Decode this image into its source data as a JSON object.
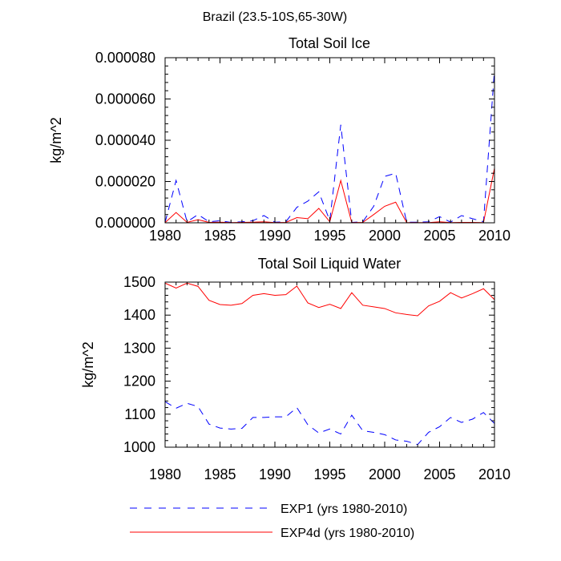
{
  "header": {
    "title": "Brazil (23.5-10S,65-30W)"
  },
  "colors": {
    "exp1": "#0000ff",
    "exp4d": "#ff0000",
    "axis": "#000000"
  },
  "chart_data": [
    {
      "type": "line",
      "title": "Total Soil Ice",
      "ylabel": "kg/m^2",
      "xlabel": "",
      "xlim": [
        1980,
        2010
      ],
      "ylim": [
        0,
        8e-05
      ],
      "x_ticks": [
        1980,
        1985,
        1990,
        1995,
        2000,
        2005,
        2010
      ],
      "x_tick_labels": [
        "1980",
        "1985",
        "1990",
        "1995",
        "2000",
        "2005",
        "2010"
      ],
      "y_ticks": [
        0,
        2e-05,
        4e-05,
        6e-05,
        8e-05
      ],
      "y_tick_labels": [
        "0.000000",
        "0.000020",
        "0.000040",
        "0.000060",
        "0.000080"
      ],
      "x": [
        1980,
        1981,
        1982,
        1983,
        1984,
        1985,
        1986,
        1987,
        1988,
        1989,
        1990,
        1991,
        1992,
        1993,
        1994,
        1995,
        1996,
        1997,
        1998,
        1999,
        2000,
        2001,
        2002,
        2003,
        2004,
        2005,
        2006,
        2007,
        2008,
        2009,
        2010
      ],
      "series": [
        {
          "name": "EXP1 (yrs 1980-2010)",
          "style": "dashed",
          "color": "#0000ff",
          "values": [
            2e-07,
            2.05e-05,
            5e-07,
            4e-06,
            5e-07,
            1e-06,
            2e-07,
            5e-07,
            1e-06,
            3.5e-06,
            3e-07,
            5e-07,
            7.5e-06,
            1.05e-05,
            1.5e-05,
            1e-06,
            4.75e-05,
            2e-07,
            5e-07,
            8e-06,
            2.25e-05,
            2.4e-05,
            3e-07,
            3e-07,
            5e-07,
            3e-06,
            3e-07,
            3.5e-06,
            2e-06,
            5e-07,
            7.4e-05
          ]
        },
        {
          "name": "EXP4d (yrs 1980-2010)",
          "style": "solid",
          "color": "#ff0000",
          "values": [
            1e-07,
            5e-06,
            2e-07,
            1.5e-06,
            2e-07,
            3e-07,
            1e-07,
            2e-07,
            3e-07,
            5e-07,
            1e-07,
            2e-07,
            2.5e-06,
            2e-06,
            7e-06,
            5e-07,
            2.05e-05,
            1e-07,
            2e-07,
            4e-06,
            8e-06,
            1e-05,
            1e-07,
            1e-07,
            1e-07,
            5e-07,
            1e-07,
            2e-07,
            2e-07,
            1e-07,
            2.65e-05
          ]
        }
      ]
    },
    {
      "type": "line",
      "title": "Total Soil Liquid Water",
      "ylabel": "kg/m^2",
      "xlabel": "",
      "xlim": [
        1980,
        2010
      ],
      "ylim": [
        1000,
        1500
      ],
      "x_ticks": [
        1980,
        1985,
        1990,
        1995,
        2000,
        2005,
        2010
      ],
      "x_tick_labels": [
        "1980",
        "1985",
        "1990",
        "1995",
        "2000",
        "2005",
        "2010"
      ],
      "y_ticks": [
        1000,
        1100,
        1200,
        1300,
        1400,
        1500
      ],
      "y_tick_labels": [
        "1000",
        "1100",
        "1200",
        "1300",
        "1400",
        "1500"
      ],
      "x": [
        1980,
        1981,
        1982,
        1983,
        1984,
        1985,
        1986,
        1987,
        1988,
        1989,
        1990,
        1991,
        1992,
        1993,
        1994,
        1995,
        1996,
        1997,
        1998,
        1999,
        2000,
        2001,
        2002,
        2003,
        2004,
        2005,
        2006,
        2007,
        2008,
        2009,
        2010
      ],
      "series": [
        {
          "name": "EXP1 (yrs 1980-2010)",
          "style": "dashed",
          "color": "#0000ff",
          "values": [
            1138,
            1118,
            1133,
            1123,
            1070,
            1058,
            1055,
            1057,
            1090,
            1090,
            1092,
            1092,
            1120,
            1068,
            1043,
            1055,
            1040,
            1097,
            1050,
            1045,
            1038,
            1022,
            1018,
            1008,
            1045,
            1062,
            1090,
            1075,
            1085,
            1105,
            1072
          ]
        },
        {
          "name": "EXP4d (yrs 1980-2010)",
          "style": "solid",
          "color": "#ff0000",
          "values": [
            1497,
            1482,
            1497,
            1487,
            1445,
            1432,
            1430,
            1435,
            1460,
            1465,
            1460,
            1462,
            1488,
            1437,
            1423,
            1433,
            1420,
            1468,
            1430,
            1425,
            1420,
            1407,
            1402,
            1398,
            1428,
            1442,
            1468,
            1452,
            1465,
            1480,
            1447
          ]
        }
      ]
    }
  ],
  "legend": {
    "placement": "bottom-left",
    "items": [
      {
        "label": "EXP1 (yrs 1980-2010)",
        "style": "dashed",
        "color": "#0000ff"
      },
      {
        "label": "EXP4d (yrs 1980-2010)",
        "style": "solid",
        "color": "#ff0000"
      }
    ]
  }
}
